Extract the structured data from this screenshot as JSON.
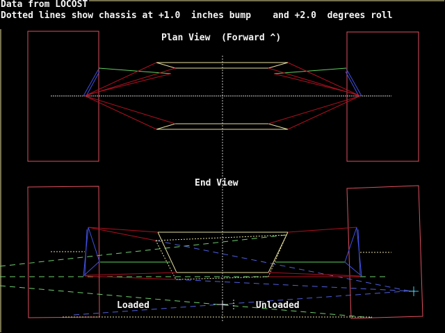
{
  "header": {
    "line1": "Data from LOCOST",
    "line2": "Dotted lines show chassis at +1.0  inches bump    and +2.0  degrees roll"
  },
  "plan_view": {
    "title": "Plan View  (Forward ^)"
  },
  "end_view": {
    "title": "End View",
    "loaded_label": "Loaded",
    "unloaded_label": "Unloaded"
  },
  "colors": {
    "background": "#000000",
    "wheel": "#e05060",
    "wishbone": "#b01020",
    "chassis": "#e8e0a0",
    "track_rod": "#60d060",
    "upright": "#4050e0",
    "axis": "#d0d0d0"
  }
}
